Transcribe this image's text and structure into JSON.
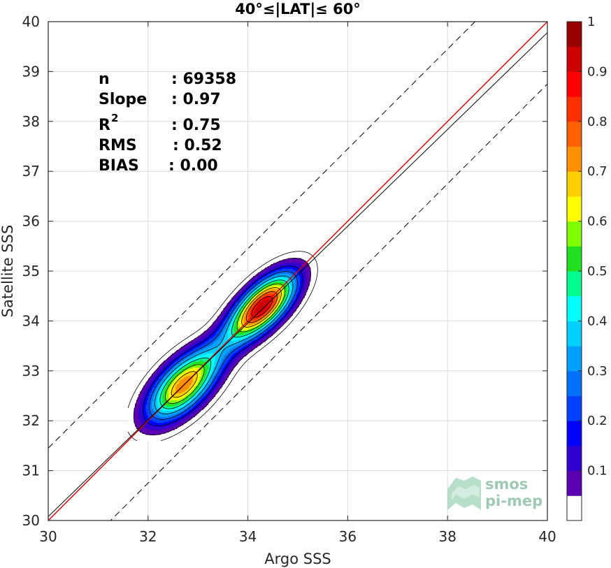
{
  "chart_data": {
    "type": "scatter",
    "subtype": "density-contour",
    "title": "40°≤|LAT|≤ 60°",
    "xlabel": "Argo SSS",
    "ylabel": "Satellite SSS",
    "xlim": [
      30,
      40
    ],
    "ylim": [
      30,
      40
    ],
    "xticks": [
      "30",
      "32",
      "34",
      "36",
      "38",
      "40"
    ],
    "yticks": [
      "30",
      "31",
      "32",
      "33",
      "34",
      "35",
      "36",
      "37",
      "38",
      "39",
      "40"
    ],
    "grid": true,
    "stats": [
      {
        "label": "n",
        "value": ": 69358"
      },
      {
        "label": "Slope",
        "value": ": 0.97"
      },
      {
        "label": "R",
        "sup": "2",
        "value": ": 0.75"
      },
      {
        "label": "RMS",
        "value": ": 0.52"
      },
      {
        "label": "BIAS",
        "value": ": 0.00"
      }
    ],
    "lines": [
      {
        "kind": "one-to-one",
        "color": "#d00000",
        "slope": 1.0,
        "intercept": 0.0
      },
      {
        "kind": "regression",
        "color": "#000000",
        "slope": 0.97,
        "intercept": 0.98
      },
      {
        "kind": "upper-bound",
        "color": "#000000",
        "dashed": true,
        "slope": 1.0,
        "intercept": 1.45
      },
      {
        "kind": "lower-bound",
        "color": "#000000",
        "dashed": true,
        "slope": 1.0,
        "intercept": -1.25
      }
    ],
    "density_clusters": [
      {
        "center": [
          32.7,
          32.7
        ],
        "peak": 0.72
      },
      {
        "center": [
          34.3,
          34.3
        ],
        "peak": 0.93
      }
    ],
    "colorbar": {
      "range": [
        0,
        1
      ],
      "ticks": [
        "0.1",
        "0.2",
        "0.3",
        "0.4",
        "0.5",
        "0.6",
        "0.7",
        "0.8",
        "0.9",
        "1"
      ],
      "colors": [
        "#ffffff",
        "#5a00b0",
        "#3000d0",
        "#0000ff",
        "#0040ff",
        "#0070ff",
        "#00a0ff",
        "#00d0ff",
        "#00ffff",
        "#00ff90",
        "#20e020",
        "#80ff00",
        "#ffff00",
        "#ffd000",
        "#ff9000",
        "#ff6000",
        "#ff3000",
        "#ff0000",
        "#cc0000",
        "#990000"
      ]
    },
    "watermark": {
      "line1": "smos",
      "line2": "pi-mep"
    }
  }
}
